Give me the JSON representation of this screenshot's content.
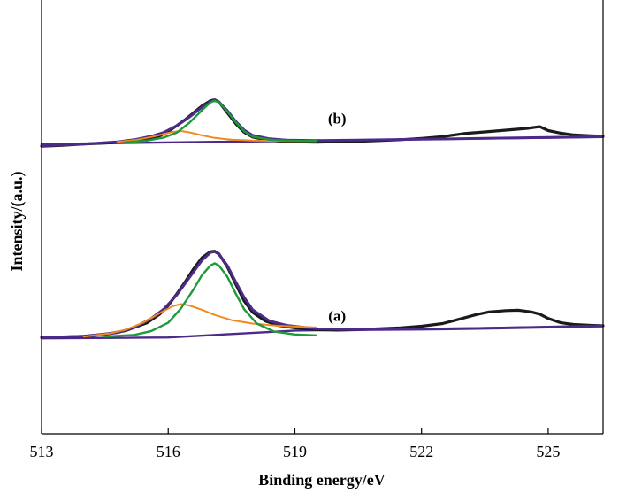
{
  "chart_data": {
    "type": "line",
    "xlabel": "Binding energy/eV",
    "ylabel": "Intensity/(a.u.)",
    "xlim": [
      513,
      526.3
    ],
    "xticks": [
      513,
      516,
      519,
      522,
      525
    ],
    "ylim": [
      0,
      100
    ],
    "grid": false,
    "legend": "none",
    "panels": [
      {
        "label": "(b)",
        "label_at": {
          "x": 520.0,
          "y": 71.5
        },
        "series": [
          {
            "role": "raw",
            "color": "#1a1a1a",
            "x": [
              513.0,
              513.5,
              514.0,
              514.5,
              515.0,
              515.5,
              515.8,
              516.0,
              516.2,
              516.4,
              516.6,
              516.8,
              517.0,
              517.1,
              517.2,
              517.4,
              517.6,
              517.8,
              518.0,
              518.3,
              518.6,
              519.0,
              519.5,
              520.0,
              520.5,
              521.0,
              521.5,
              522.0,
              522.5,
              523.0,
              523.5,
              524.0,
              524.5,
              524.8,
              525.0,
              525.3,
              525.6,
              526.0,
              526.3
            ],
            "y": [
              66.3,
              66.5,
              66.8,
              67.0,
              67.3,
              68.0,
              68.7,
              69.7,
              71.0,
              72.4,
              74.0,
              75.6,
              76.8,
              77.0,
              76.5,
              74.0,
              71.5,
              69.5,
              68.4,
              67.8,
              67.5,
              67.3,
              67.2,
              67.3,
              67.4,
              67.6,
              67.8,
              68.1,
              68.5,
              69.2,
              69.6,
              70.0,
              70.4,
              70.8,
              69.9,
              69.3,
              68.9,
              68.7,
              68.6
            ]
          },
          {
            "role": "envelope",
            "color": "#4b2a8a",
            "x": [
              513.0,
              514.0,
              514.8,
              515.2,
              515.6,
              515.9,
              516.2,
              516.5,
              516.8,
              517.0,
              517.1,
              517.2,
              517.4,
              517.6,
              517.8,
              518.0,
              518.4,
              518.8,
              519.5,
              520.5,
              522.0,
              523.5,
              525.0,
              526.3
            ],
            "y": [
              66.4,
              66.8,
              67.3,
              67.8,
              68.6,
              69.5,
              71.0,
              73.0,
              75.3,
              76.6,
              76.9,
              76.5,
              74.5,
              72.0,
              70.0,
              68.8,
              68.0,
              67.7,
              67.6,
              67.7,
              67.9,
              68.1,
              68.3,
              68.5
            ]
          },
          {
            "role": "fit-peak-1",
            "color": "#f08a1e",
            "x": [
              514.8,
              515.2,
              515.6,
              515.9,
              516.1,
              516.3,
              516.5,
              516.8,
              517.1,
              517.5,
              518.0,
              518.8,
              519.5
            ],
            "y": [
              67.3,
              67.7,
              68.4,
              69.1,
              69.6,
              69.8,
              69.5,
              68.8,
              68.2,
              67.8,
              67.6,
              67.5,
              67.5
            ]
          },
          {
            "role": "fit-peak-2",
            "color": "#1f9a3a",
            "x": [
              515.0,
              515.5,
              515.9,
              516.2,
              516.5,
              516.8,
              517.0,
              517.1,
              517.2,
              517.4,
              517.6,
              517.8,
              518.0,
              518.4,
              518.8,
              519.5
            ],
            "y": [
              67.2,
              67.6,
              68.3,
              69.4,
              71.7,
              74.6,
              76.4,
              76.8,
              76.4,
              74.3,
              71.8,
              69.7,
              68.5,
              67.8,
              67.6,
              67.5
            ]
          },
          {
            "role": "baseline",
            "color": "#4b2a8a",
            "x": [
              513.0,
              526.3
            ],
            "y": [
              66.8,
              68.4
            ]
          }
        ]
      },
      {
        "label": "(a)",
        "label_at": {
          "x": 520.0,
          "y": 26.0
        },
        "series": [
          {
            "role": "raw",
            "color": "#1a1a1a",
            "x": [
              513.0,
              513.5,
              514.0,
              514.5,
              515.0,
              515.5,
              515.8,
              516.0,
              516.2,
              516.4,
              516.6,
              516.8,
              517.0,
              517.1,
              517.2,
              517.4,
              517.6,
              517.8,
              518.0,
              518.3,
              518.6,
              519.0,
              519.5,
              520.0,
              520.5,
              521.0,
              521.5,
              522.0,
              522.5,
              523.0,
              523.3,
              523.6,
              524.0,
              524.3,
              524.6,
              524.8,
              525.0,
              525.3,
              525.6,
              526.0,
              526.3
            ],
            "y": [
              22.2,
              22.3,
              22.5,
              22.9,
              23.8,
              25.6,
              27.6,
              29.6,
              32.2,
              35.0,
              38.0,
              40.6,
              42.0,
              42.1,
              41.5,
              38.5,
              34.5,
              30.6,
              28.0,
              26.0,
              25.0,
              24.4,
              24.0,
              23.9,
              24.0,
              24.2,
              24.4,
              24.8,
              25.4,
              26.7,
              27.5,
              28.1,
              28.4,
              28.5,
              28.1,
              27.6,
              26.6,
              25.6,
              25.2,
              25.0,
              24.9
            ]
          },
          {
            "role": "envelope",
            "color": "#4b2a8a",
            "x": [
              513.0,
              514.0,
              514.8,
              515.2,
              515.6,
              515.9,
              516.2,
              516.5,
              516.8,
              517.0,
              517.1,
              517.2,
              517.4,
              517.6,
              517.8,
              518.0,
              518.4,
              518.8,
              519.5,
              520.5,
              522.0,
              523.5,
              525.0,
              526.3
            ],
            "y": [
              22.2,
              22.5,
              23.3,
              24.5,
              26.6,
              28.8,
              32.0,
              36.0,
              40.0,
              41.8,
              42.0,
              41.4,
              38.8,
              35.0,
              31.4,
              28.6,
              26.0,
              25.0,
              24.2,
              24.0,
              24.1,
              24.3,
              24.6,
              24.9
            ]
          },
          {
            "role": "fit-peak-1",
            "color": "#f08a1e",
            "x": [
              514.0,
              514.6,
              515.0,
              515.4,
              515.8,
              516.1,
              516.3,
              516.5,
              516.8,
              517.1,
              517.5,
              518.0,
              518.6,
              519.5
            ],
            "y": [
              22.4,
              23.1,
              24.0,
              25.6,
              27.8,
              29.4,
              29.9,
              29.6,
              28.6,
              27.4,
              26.2,
              25.4,
              24.9,
              24.5
            ]
          },
          {
            "role": "fit-peak-2",
            "color": "#1f9a3a",
            "x": [
              514.5,
              515.2,
              515.6,
              516.0,
              516.3,
              516.6,
              516.8,
              517.0,
              517.1,
              517.2,
              517.4,
              517.6,
              517.8,
              518.1,
              518.5,
              519.0,
              519.5
            ],
            "y": [
              22.4,
              22.8,
              23.7,
              25.6,
              28.9,
              33.3,
              36.6,
              38.8,
              39.3,
              38.8,
              36.2,
              32.3,
              28.7,
              25.4,
              23.6,
              22.9,
              22.7
            ]
          },
          {
            "role": "baseline",
            "color": "#4b2a8a",
            "x": [
              513.0,
              516.0,
              517.5,
              519.0,
              520.5,
              523.0,
              526.3
            ],
            "y": [
              22.0,
              22.2,
              23.0,
              23.8,
              24.0,
              24.3,
              24.8
            ]
          }
        ]
      }
    ]
  }
}
